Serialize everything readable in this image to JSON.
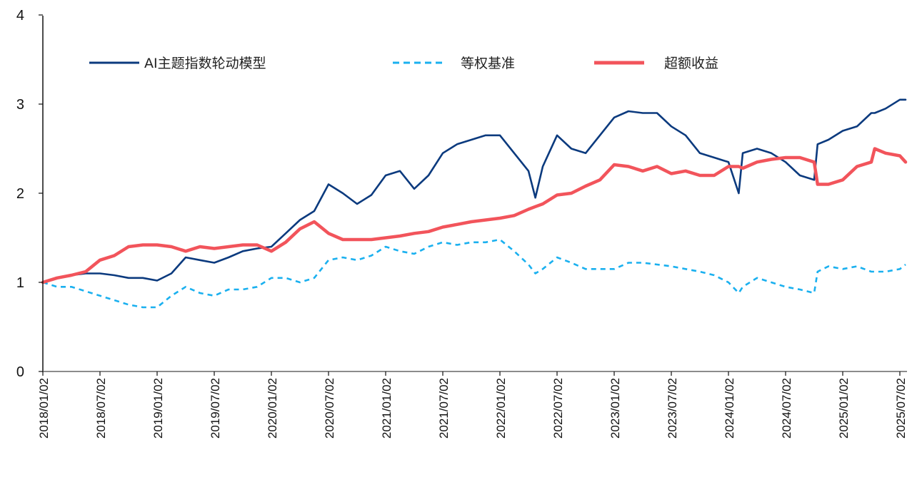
{
  "chart_data": {
    "type": "line",
    "title": "",
    "xlabel": "",
    "ylabel": "",
    "ylim": [
      0,
      4
    ],
    "yticks": [
      "0",
      "1",
      "2",
      "3",
      "4"
    ],
    "xlim": [
      2018.0,
      2025.55
    ],
    "xticks": [
      {
        "value": 2018.0,
        "label": "2018/01/02"
      },
      {
        "value": 2018.5,
        "label": "2018/07/02"
      },
      {
        "value": 2019.0,
        "label": "2019/01/02"
      },
      {
        "value": 2019.5,
        "label": "2019/07/02"
      },
      {
        "value": 2020.0,
        "label": "2020/01/02"
      },
      {
        "value": 2020.5,
        "label": "2020/07/02"
      },
      {
        "value": 2021.0,
        "label": "2021/01/02"
      },
      {
        "value": 2021.5,
        "label": "2021/07/02"
      },
      {
        "value": 2022.0,
        "label": "2022/01/02"
      },
      {
        "value": 2022.5,
        "label": "2022/07/02"
      },
      {
        "value": 2023.0,
        "label": "2023/01/02"
      },
      {
        "value": 2023.5,
        "label": "2023/07/02"
      },
      {
        "value": 2024.0,
        "label": "2024/01/02"
      },
      {
        "value": 2024.5,
        "label": "2024/07/02"
      },
      {
        "value": 2025.0,
        "label": "2025/01/02"
      },
      {
        "value": 2025.5,
        "label": "2025/07/02"
      }
    ],
    "grid": false,
    "legend_position": "top",
    "x": [
      2018,
      2018.125,
      2018.25,
      2018.375,
      2018.5,
      2018.625,
      2018.75,
      2018.875,
      2019,
      2019.125,
      2019.25,
      2019.375,
      2019.5,
      2019.625,
      2019.75,
      2019.875,
      2020,
      2020.125,
      2020.25,
      2020.375,
      2020.5,
      2020.625,
      2020.75,
      2020.875,
      2021,
      2021.125,
      2021.25,
      2021.375,
      2021.5,
      2021.625,
      2021.75,
      2021.875,
      2022,
      2022.125,
      2022.25,
      2022.31,
      2022.375,
      2022.5,
      2022.625,
      2022.75,
      2022.875,
      2023,
      2023.125,
      2023.25,
      2023.375,
      2023.5,
      2023.625,
      2023.75,
      2023.875,
      2024,
      2024.09,
      2024.125,
      2024.25,
      2024.375,
      2024.5,
      2024.625,
      2024.75,
      2024.78,
      2024.875,
      2025,
      2025.125,
      2025.25,
      2025.28,
      2025.375,
      2025.5,
      2025.55
    ],
    "series": [
      {
        "name": "AI主题指数轮动模型",
        "color": "#0b3a7e",
        "style": "solid",
        "values": [
          1.0,
          1.05,
          1.08,
          1.1,
          1.1,
          1.08,
          1.05,
          1.05,
          1.02,
          1.1,
          1.28,
          1.25,
          1.22,
          1.28,
          1.35,
          1.38,
          1.4,
          1.55,
          1.7,
          1.8,
          2.1,
          2.0,
          1.88,
          1.98,
          2.2,
          2.25,
          2.05,
          2.2,
          2.45,
          2.55,
          2.6,
          2.65,
          2.65,
          2.45,
          2.25,
          1.95,
          2.3,
          2.65,
          2.5,
          2.45,
          2.65,
          2.85,
          2.92,
          2.9,
          2.9,
          2.75,
          2.65,
          2.45,
          2.4,
          2.35,
          2.0,
          2.45,
          2.5,
          2.45,
          2.35,
          2.2,
          2.15,
          2.55,
          2.6,
          2.7,
          2.75,
          2.9,
          2.9,
          2.95,
          3.05,
          3.05
        ]
      },
      {
        "name": "等权基准",
        "color": "#1ab0ef",
        "style": "dashed",
        "values": [
          1.0,
          0.95,
          0.95,
          0.9,
          0.85,
          0.8,
          0.75,
          0.72,
          0.72,
          0.85,
          0.95,
          0.88,
          0.85,
          0.92,
          0.92,
          0.95,
          1.05,
          1.05,
          1.0,
          1.05,
          1.25,
          1.28,
          1.25,
          1.3,
          1.4,
          1.35,
          1.32,
          1.4,
          1.45,
          1.42,
          1.45,
          1.45,
          1.48,
          1.35,
          1.2,
          1.1,
          1.15,
          1.28,
          1.22,
          1.15,
          1.15,
          1.15,
          1.22,
          1.22,
          1.2,
          1.18,
          1.15,
          1.12,
          1.08,
          1.0,
          0.88,
          0.95,
          1.05,
          1.0,
          0.95,
          0.92,
          0.88,
          1.12,
          1.18,
          1.15,
          1.18,
          1.12,
          1.12,
          1.12,
          1.15,
          1.2
        ]
      },
      {
        "name": "超额收益",
        "color": "#f2545b",
        "style": "thick",
        "values": [
          1.0,
          1.05,
          1.08,
          1.12,
          1.25,
          1.3,
          1.4,
          1.42,
          1.42,
          1.4,
          1.35,
          1.4,
          1.38,
          1.4,
          1.42,
          1.42,
          1.35,
          1.45,
          1.6,
          1.68,
          1.55,
          1.48,
          1.48,
          1.48,
          1.5,
          1.52,
          1.55,
          1.57,
          1.62,
          1.65,
          1.68,
          1.7,
          1.72,
          1.75,
          1.82,
          1.85,
          1.88,
          1.98,
          2.0,
          2.08,
          2.15,
          2.32,
          2.3,
          2.25,
          2.3,
          2.22,
          2.25,
          2.2,
          2.2,
          2.3,
          2.3,
          2.28,
          2.35,
          2.38,
          2.4,
          2.4,
          2.35,
          2.1,
          2.1,
          2.15,
          2.3,
          2.35,
          2.5,
          2.45,
          2.42,
          2.35
        ]
      }
    ]
  }
}
